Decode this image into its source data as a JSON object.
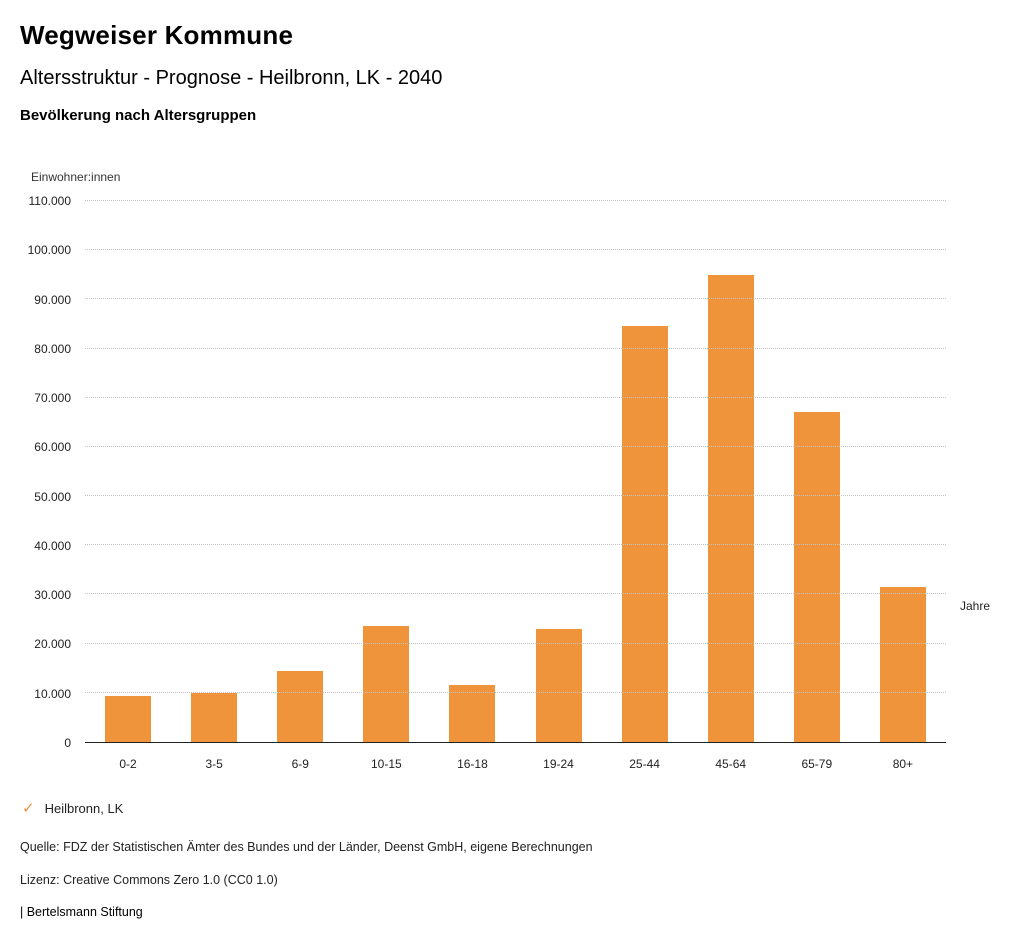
{
  "header": {
    "title": "Wegweiser Kommune",
    "subtitle": "Altersstruktur - Prognose - Heilbronn, LK - 2040",
    "chart_heading": "Bevölkerung nach Altersgruppen"
  },
  "chart_data": {
    "type": "bar",
    "title": "Bevölkerung nach Altersgruppen",
    "ylabel": "Einwohner:innen",
    "xlabel": "Jahre",
    "categories": [
      "0-2",
      "3-5",
      "6-9",
      "10-15",
      "16-18",
      "19-24",
      "25-44",
      "45-64",
      "65-79",
      "80+"
    ],
    "values": [
      9300,
      9900,
      14500,
      23500,
      11500,
      23000,
      84500,
      95000,
      67000,
      31500
    ],
    "series_name": "Heilbronn, LK",
    "ylim": [
      0,
      110000
    ],
    "ytick_step": 10000,
    "grid": true,
    "legend_position": "bottom-left",
    "bar_color": "#F0943C"
  },
  "legend": {
    "check_icon": "✓",
    "check_color": "#F0943C",
    "label": "Heilbronn, LK"
  },
  "footer": {
    "source": "Quelle: FDZ der Statistischen Ämter des Bundes und der Länder, Deenst GmbH, eigene Berechnungen",
    "license": "Lizenz: Creative Commons Zero 1.0 (CC0 1.0)",
    "attribution": "| Bertelsmann Stiftung"
  }
}
